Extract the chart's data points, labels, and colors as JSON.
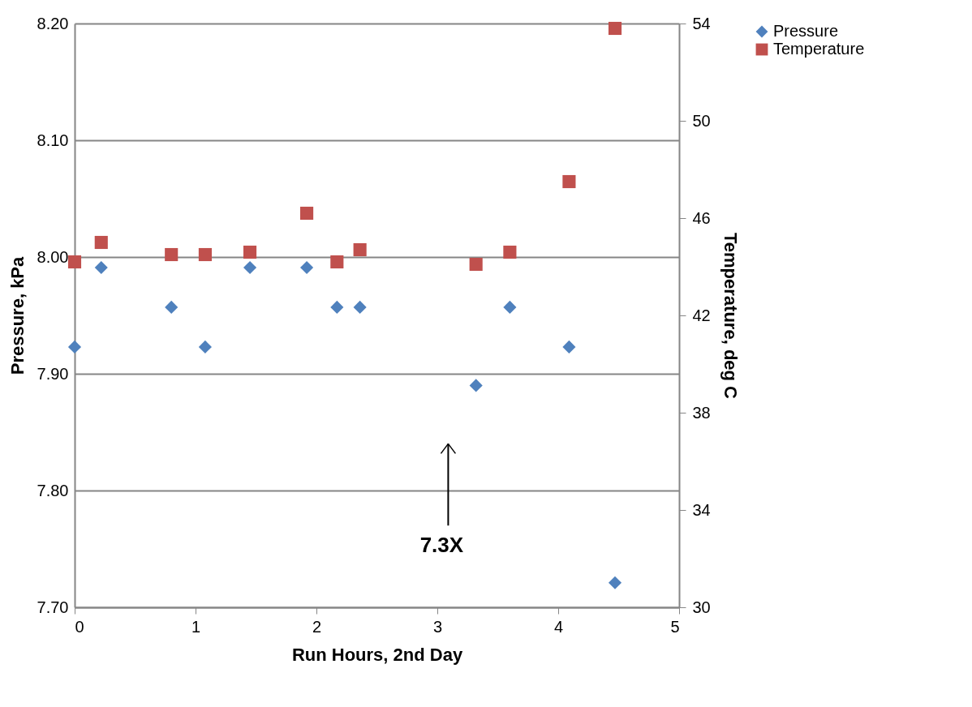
{
  "chart_data": {
    "type": "scatter",
    "xlabel": "Run Hours, 2nd Day",
    "ylabel": "Pressure, kPa",
    "y2label": "Temperature, deg C",
    "x": [
      0,
      0.22,
      0.8,
      1.08,
      1.45,
      1.92,
      2.17,
      2.36,
      3.32,
      3.6,
      4.09,
      4.47
    ],
    "series": [
      {
        "name": "Pressure",
        "color": "#4f81bd",
        "marker": "diamond",
        "values": [
          7.923,
          7.991,
          7.957,
          7.923,
          7.991,
          7.991,
          7.957,
          7.957,
          7.89,
          7.957,
          7.923,
          7.721
        ]
      },
      {
        "name": "Temperature",
        "color": "#c0504d",
        "marker": "square",
        "axis": "y2",
        "values": [
          44.2,
          45.0,
          44.5,
          44.5,
          44.6,
          46.2,
          44.2,
          44.7,
          44.1,
          44.6,
          47.5,
          53.8
        ]
      }
    ],
    "xlim": [
      0,
      5
    ],
    "xticks": [
      0,
      1,
      2,
      3,
      4,
      5
    ],
    "ylim": [
      7.7,
      8.2
    ],
    "yticks": [
      {
        "value": 7.7,
        "label": "7.70"
      },
      {
        "value": 7.8,
        "label": "7.80"
      },
      {
        "value": 7.9,
        "label": "7.90"
      },
      {
        "value": 8.0,
        "label": "8.00"
      },
      {
        "value": 8.1,
        "label": "8.10"
      },
      {
        "value": 8.2,
        "label": "8.20"
      }
    ],
    "y2lim": [
      30,
      54
    ],
    "y2ticks": [
      30,
      34,
      38,
      42,
      46,
      50,
      54
    ],
    "annotations": [
      "7.3X"
    ],
    "grid": "y",
    "legend": "right"
  }
}
